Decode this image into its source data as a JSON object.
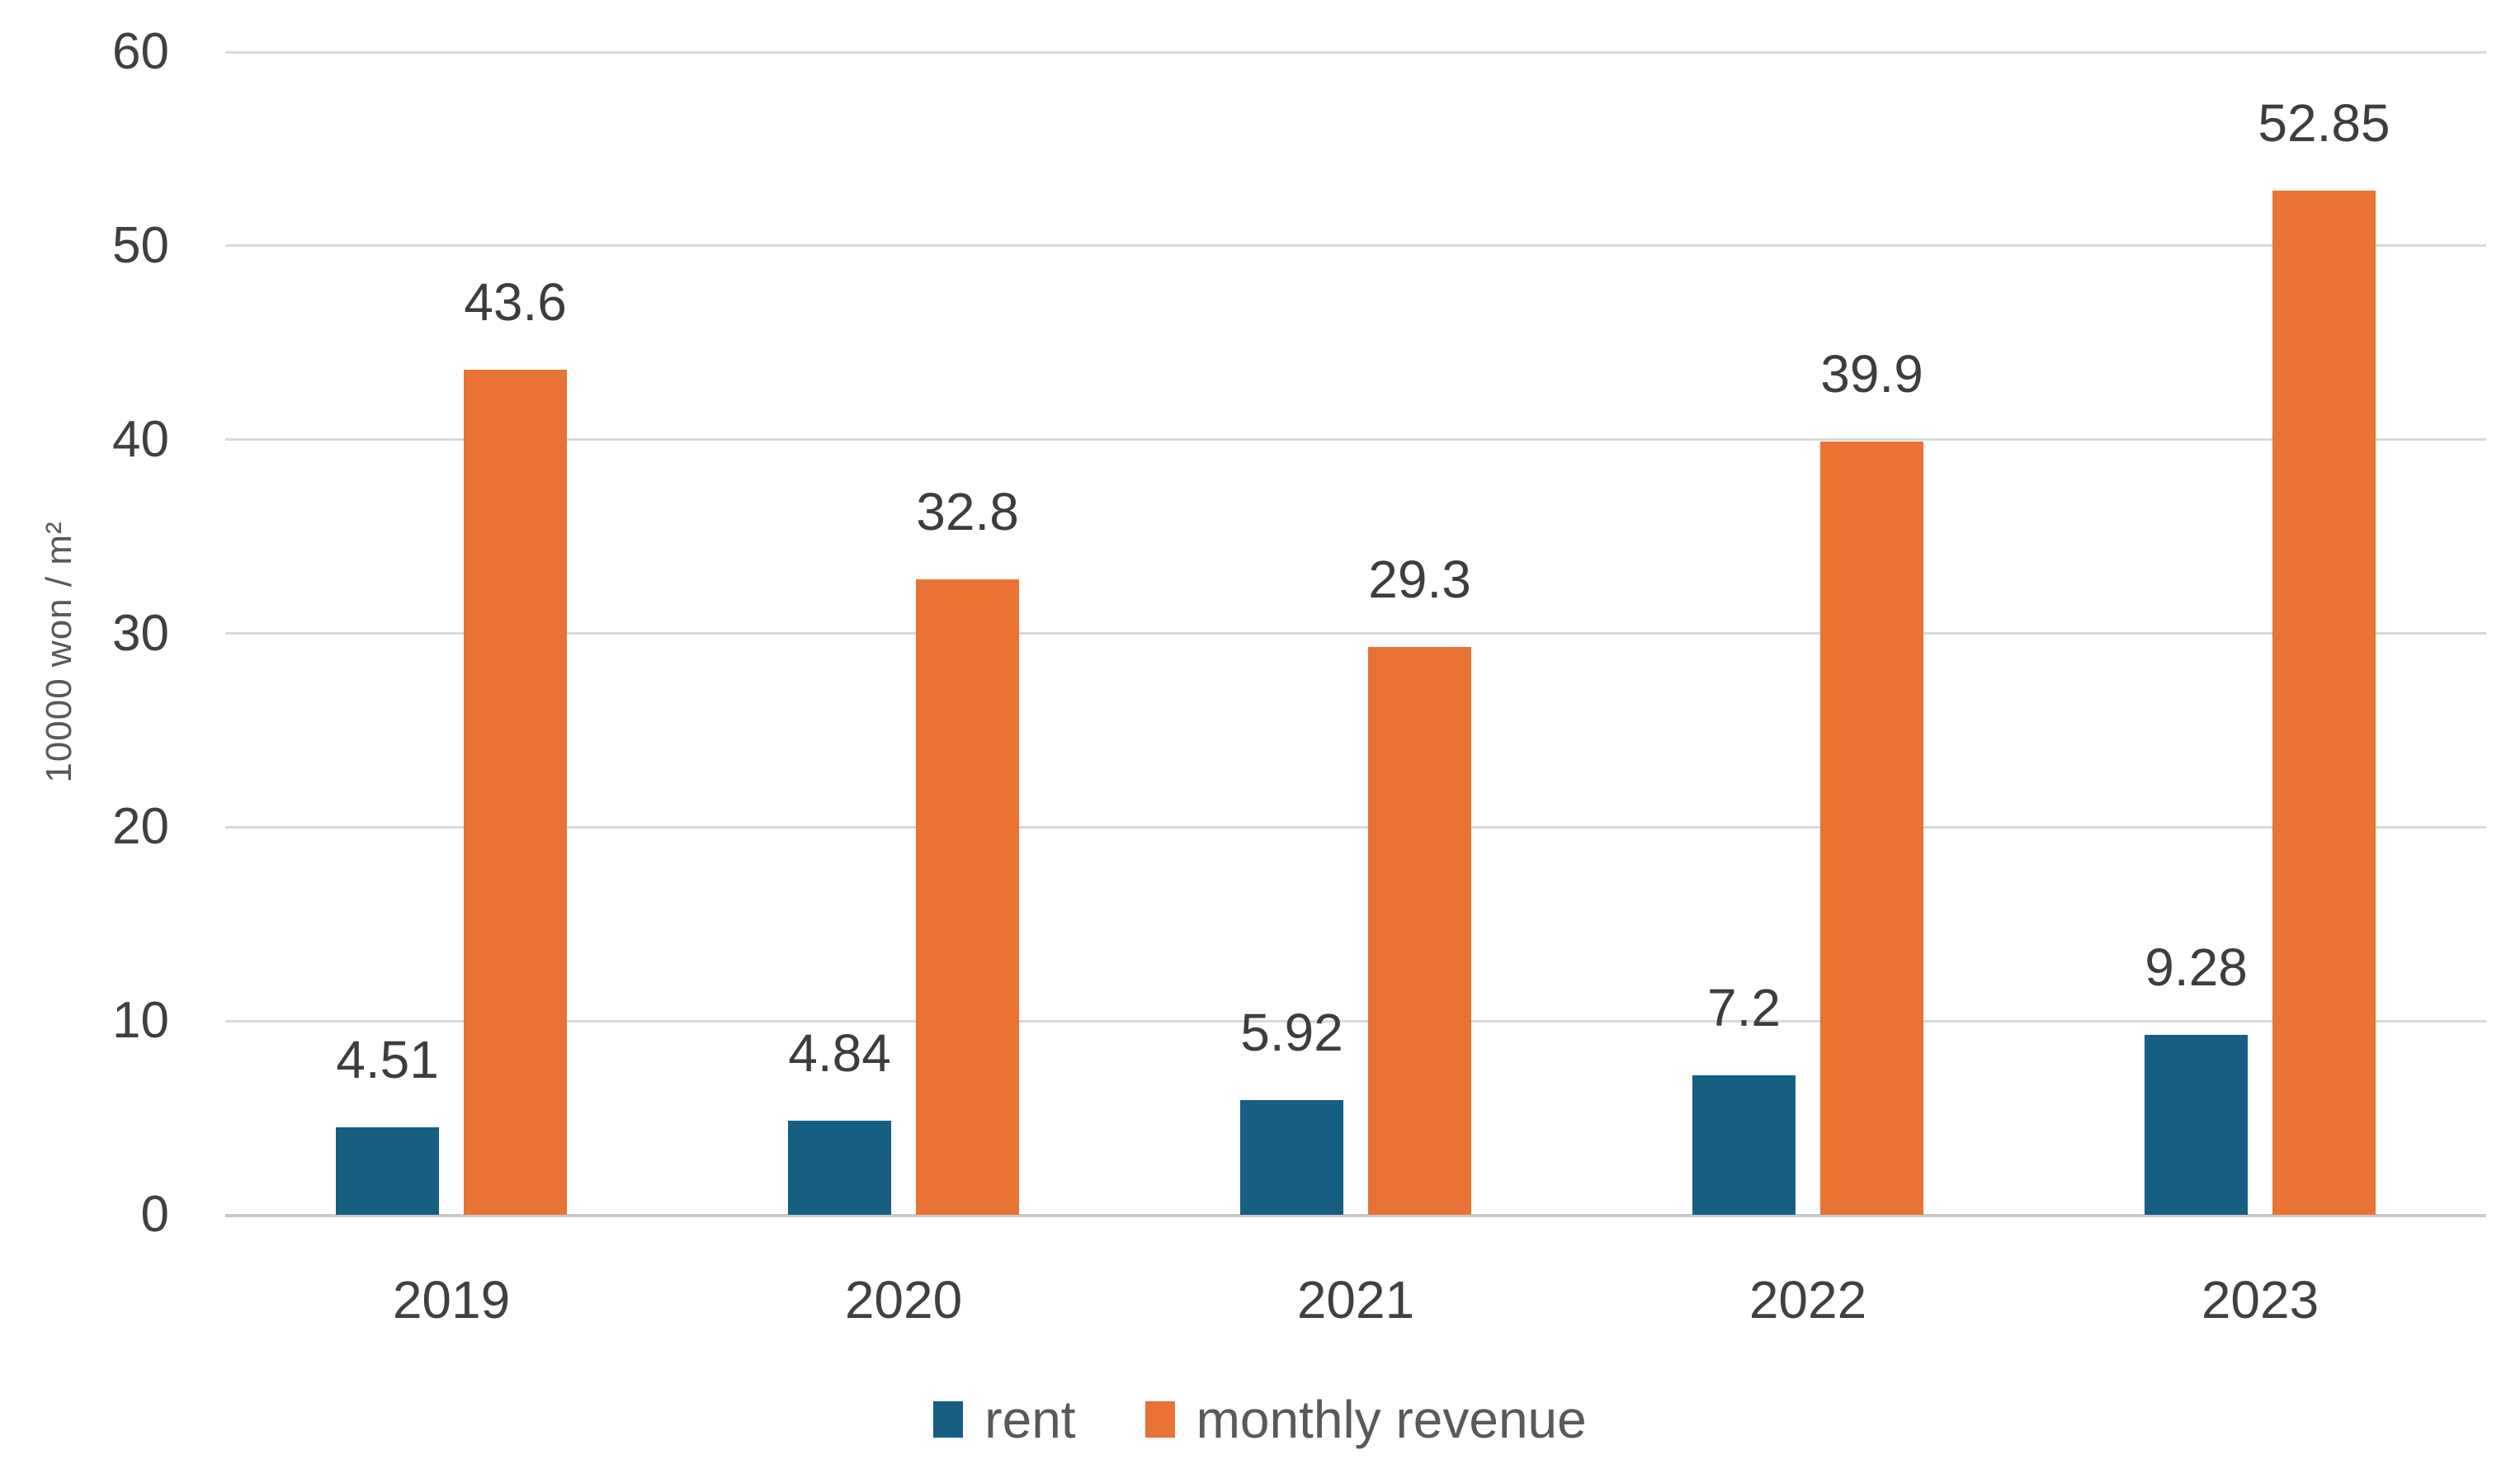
{
  "chart_data": {
    "type": "bar",
    "categories": [
      "2019",
      "2020",
      "2021",
      "2022",
      "2023"
    ],
    "series": [
      {
        "name": "rent",
        "color": "#165E82",
        "values": [
          4.51,
          4.84,
          5.92,
          7.2,
          9.28
        ]
      },
      {
        "name": "monthly revenue",
        "color": "#E87334",
        "values": [
          43.6,
          32.8,
          29.3,
          39.9,
          52.85
        ]
      }
    ],
    "data_labels": [
      "4.51",
      "4.84",
      "5.92",
      "7.2",
      "9.28",
      "43.6",
      "32.8",
      "29.3",
      "39.9",
      "52.85"
    ],
    "title": "",
    "xlabel": "",
    "ylabel": "10000 won / m²",
    "ylim": [
      0,
      60
    ],
    "yticks": [
      0,
      10,
      20,
      30,
      40,
      50,
      60
    ],
    "grid": true,
    "legend_position": "bottom",
    "colors": {
      "gridline": "#D9D9D9",
      "axis_line": "#C9C9C9",
      "tick_text": "#404040",
      "data_label_text": "#3D3D3D",
      "legend_text": "#595959",
      "background": "#FFFFFF"
    }
  }
}
